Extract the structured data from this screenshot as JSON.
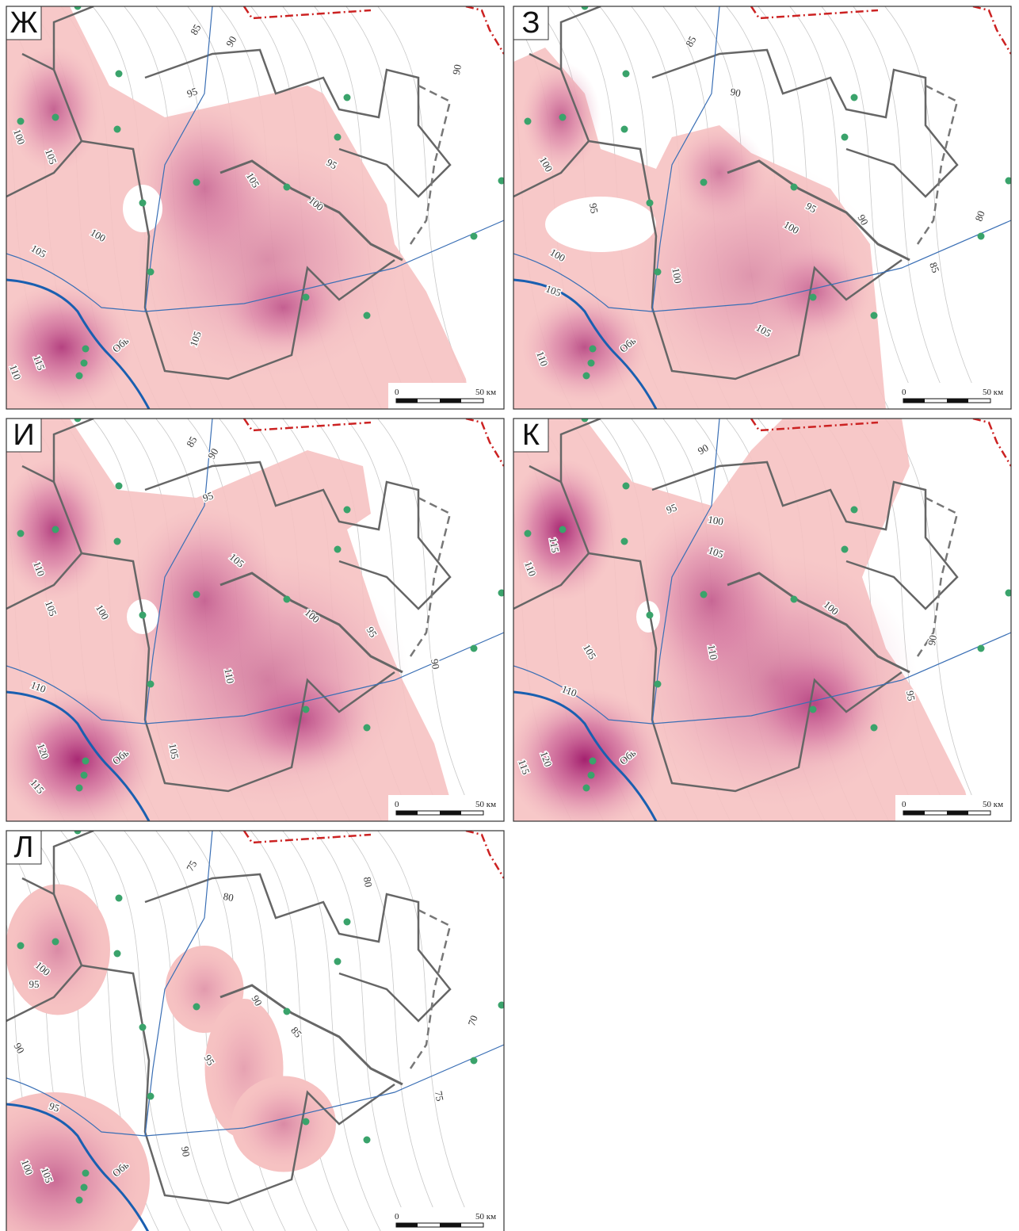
{
  "panels": [
    {
      "letter": "Ж",
      "contour_labels": [
        "85",
        "90",
        "90",
        "95",
        "95",
        "100",
        "105",
        "105",
        "100",
        "100",
        "105",
        "105",
        "115",
        "110"
      ],
      "river_label": "Обь",
      "scale_start": "0",
      "scale_end": "50 км"
    },
    {
      "letter": "З",
      "contour_labels": [
        "85",
        "90",
        "100",
        "95",
        "95",
        "90",
        "80",
        "100",
        "100",
        "100",
        "85",
        "105",
        "105",
        "110"
      ],
      "river_label": "Обь",
      "scale_start": "0",
      "scale_end": "50 км"
    },
    {
      "letter": "И",
      "contour_labels": [
        "85",
        "90",
        "95",
        "110",
        "105",
        "100",
        "105",
        "100",
        "95",
        "90",
        "110",
        "110",
        "105",
        "120",
        "115"
      ],
      "river_label": "Обь",
      "scale_start": "0",
      "scale_end": "50 км"
    },
    {
      "letter": "К",
      "contour_labels": [
        "90",
        "95",
        "100",
        "105",
        "115",
        "110",
        "100",
        "105",
        "110",
        "90",
        "95",
        "110",
        "120",
        "115"
      ],
      "river_label": "Обь",
      "scale_start": "0",
      "scale_end": "50 км"
    },
    {
      "letter": "Л",
      "contour_labels": [
        "75",
        "80",
        "80",
        "90",
        "85",
        "70",
        "100",
        "95",
        "90",
        "95",
        "75",
        "95",
        "90",
        "100",
        "105"
      ],
      "river_label": "Обь",
      "scale_start": "0",
      "scale_end": "50 км"
    }
  ]
}
